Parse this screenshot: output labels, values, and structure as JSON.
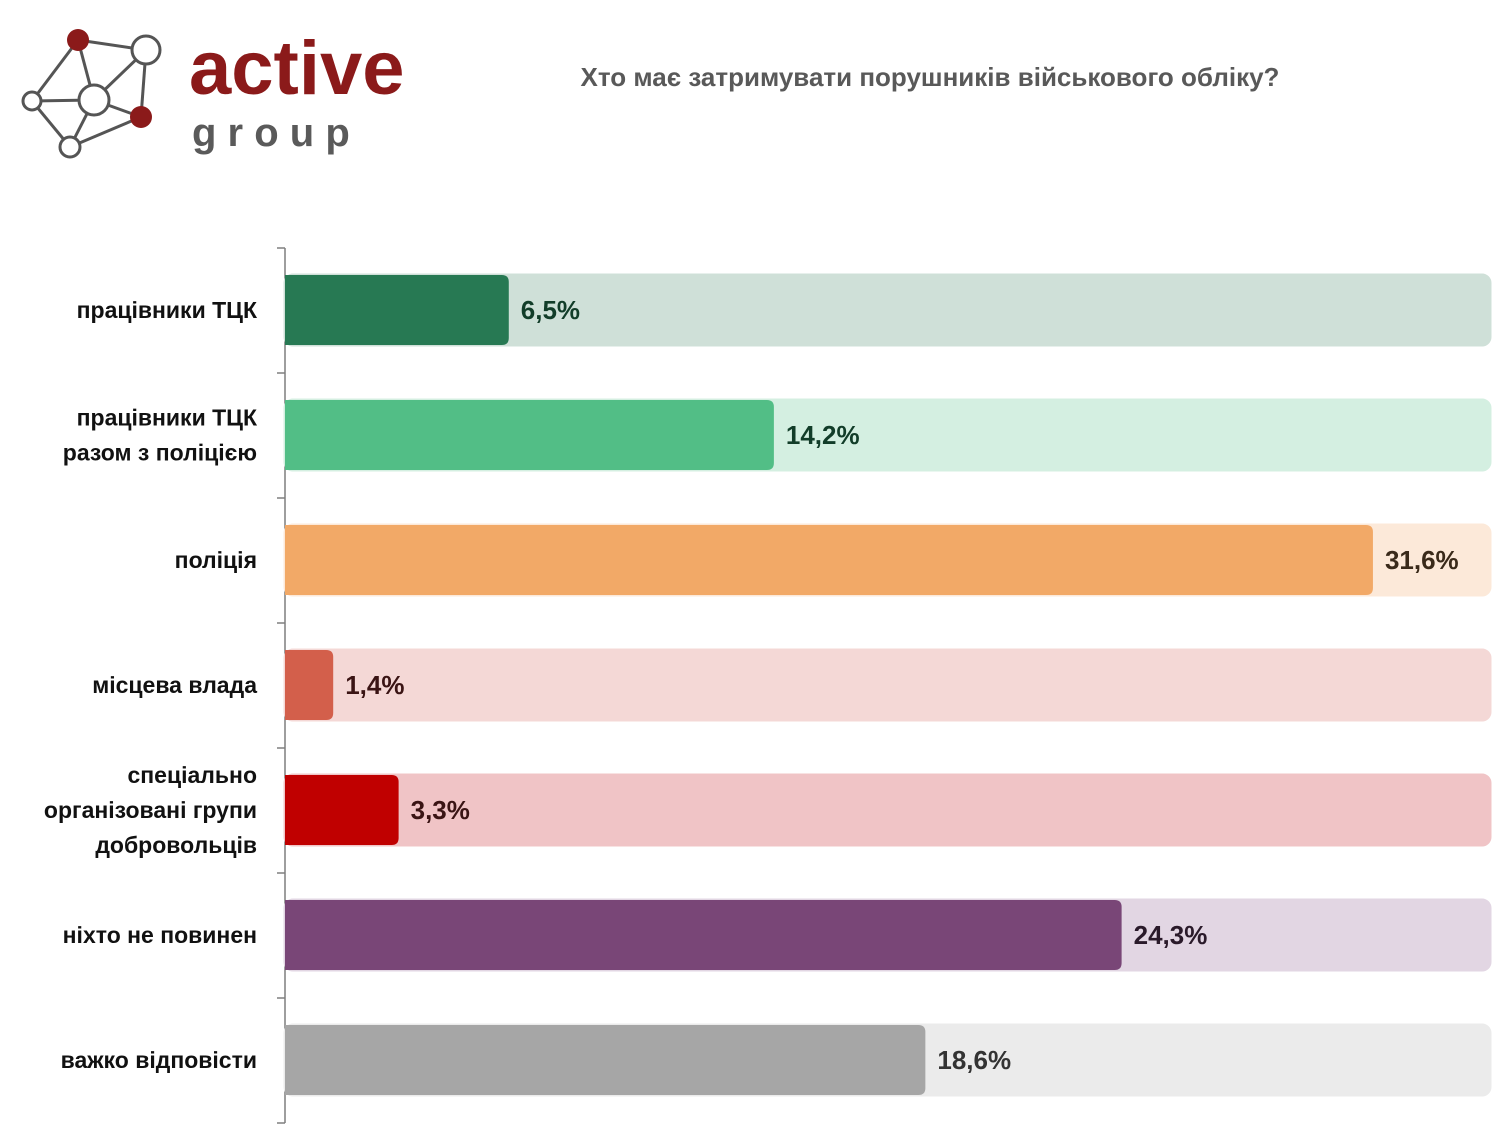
{
  "logo": {
    "brand_top": "active",
    "brand_bottom": "g r o u p",
    "brand_color": "#8b1a1a",
    "icon": "network-nodes-icon"
  },
  "chart_data": {
    "type": "bar",
    "orientation": "horizontal",
    "title": "Хто має затримувати порушників військового обліку?",
    "xlabel": "",
    "ylabel": "",
    "xlim": [
      0,
      35
    ],
    "grid": false,
    "categories": [
      "працівники ТЦК",
      "працівники ТЦК разом з поліцією",
      "поліція",
      "місцева влада",
      "спеціально організовані групи добровольців",
      "ніхто не повинен",
      "важко відповісти"
    ],
    "category_lines": [
      [
        "працівники ТЦК"
      ],
      [
        "працівники ТЦК",
        "разом з поліцією"
      ],
      [
        "поліція"
      ],
      [
        "місцева влада"
      ],
      [
        "спеціально",
        "організовані групи",
        "добровольців"
      ],
      [
        "ніхто не повинен"
      ],
      [
        "важко відповісти"
      ]
    ],
    "values": [
      6.5,
      14.2,
      31.6,
      1.4,
      3.3,
      24.3,
      18.6
    ],
    "value_labels": [
      "6,5%",
      "14,2%",
      "31,6%",
      "1,4%",
      "3,3%",
      "24,3%",
      "18,6%"
    ],
    "colors": [
      "#277953",
      "#52be86",
      "#f2a967",
      "#d35f4b",
      "#c00000",
      "#794677",
      "#a6a6a6"
    ],
    "track_colors": [
      "#cfe0d8",
      "#d4efe1",
      "#fce9d9",
      "#f4d8d6",
      "#f0c4c6",
      "#e2d6e3",
      "#ebebeb"
    ],
    "label_colors": [
      "#123d29",
      "#123d29",
      "#3a2a1a",
      "#3a1414",
      "#3a1414",
      "#2a1a2a",
      "#333333"
    ]
  }
}
